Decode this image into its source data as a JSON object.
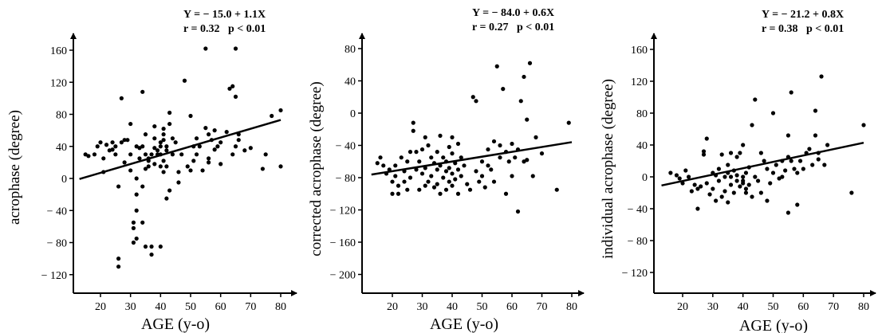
{
  "chart_data": [
    {
      "type": "scatter",
      "xlabel": "AGE (y-o)",
      "ylabel": "acrophase (degree)",
      "equation": "Y = − 15.0 + 1.1X",
      "stats": "r = 0.32   p < 0.01",
      "xlim": [
        12,
        82
      ],
      "ylim": [
        -130,
        170
      ],
      "xticks": [
        "20",
        "30",
        "40",
        "50",
        "60",
        "70",
        "80"
      ],
      "yticks": [
        "160",
        "120",
        "80",
        "40",
        "0",
        "− 40",
        "− 80",
        "− 120"
      ],
      "yticks_values": [
        160,
        120,
        80,
        40,
        0,
        -40,
        -80,
        -120
      ],
      "regression": {
        "intercept": -15.0,
        "slope": 1.1,
        "x_range": [
          13,
          80
        ]
      },
      "points": [
        [
          15,
          30
        ],
        [
          16,
          28
        ],
        [
          18,
          30
        ],
        [
          19,
          40
        ],
        [
          20,
          45
        ],
        [
          21,
          8
        ],
        [
          21,
          25
        ],
        [
          22,
          42
        ],
        [
          23,
          35
        ],
        [
          24,
          36
        ],
        [
          24,
          45
        ],
        [
          25,
          40
        ],
        [
          25,
          30
        ],
        [
          26,
          -10
        ],
        [
          26,
          -100
        ],
        [
          26,
          -110
        ],
        [
          27,
          45
        ],
        [
          27,
          100
        ],
        [
          28,
          48
        ],
        [
          28,
          20
        ],
        [
          29,
          48
        ],
        [
          30,
          10
        ],
        [
          30,
          30
        ],
        [
          30,
          68
        ],
        [
          31,
          -55
        ],
        [
          31,
          -62
        ],
        [
          31,
          -80
        ],
        [
          32,
          0
        ],
        [
          32,
          -20
        ],
        [
          32,
          -40
        ],
        [
          32,
          -75
        ],
        [
          32,
          40
        ],
        [
          33,
          38
        ],
        [
          33,
          25
        ],
        [
          34,
          40
        ],
        [
          34,
          108
        ],
        [
          34,
          -10
        ],
        [
          34,
          -55
        ],
        [
          35,
          30
        ],
        [
          35,
          55
        ],
        [
          35,
          12
        ],
        [
          35,
          -85
        ],
        [
          36,
          25
        ],
        [
          36,
          22
        ],
        [
          36,
          15
        ],
        [
          37,
          -95
        ],
        [
          37,
          -85
        ],
        [
          37,
          30
        ],
        [
          38,
          38
        ],
        [
          38,
          65
        ],
        [
          38,
          50
        ],
        [
          38,
          18
        ],
        [
          39,
          35
        ],
        [
          39,
          30
        ],
        [
          40,
          40
        ],
        [
          40,
          45
        ],
        [
          40,
          30
        ],
        [
          40,
          15
        ],
        [
          40,
          -85
        ],
        [
          41,
          55
        ],
        [
          41,
          62
        ],
        [
          41,
          48
        ],
        [
          41,
          22
        ],
        [
          41,
          8
        ],
        [
          42,
          -25
        ],
        [
          42,
          40
        ],
        [
          42,
          35
        ],
        [
          42,
          15
        ],
        [
          43,
          82
        ],
        [
          43,
          68
        ],
        [
          43,
          -15
        ],
        [
          44,
          50
        ],
        [
          44,
          30
        ],
        [
          45,
          45
        ],
        [
          46,
          8
        ],
        [
          46,
          -5
        ],
        [
          47,
          30
        ],
        [
          48,
          122
        ],
        [
          49,
          15
        ],
        [
          50,
          10
        ],
        [
          50,
          78
        ],
        [
          51,
          40
        ],
        [
          51,
          22
        ],
        [
          52,
          50
        ],
        [
          52,
          30
        ],
        [
          53,
          40
        ],
        [
          54,
          10
        ],
        [
          55,
          63
        ],
        [
          55,
          162
        ],
        [
          56,
          25
        ],
        [
          56,
          20
        ],
        [
          56,
          55
        ],
        [
          57,
          48
        ],
        [
          58,
          60
        ],
        [
          58,
          36
        ],
        [
          59,
          40
        ],
        [
          60,
          45
        ],
        [
          60,
          18
        ],
        [
          62,
          58
        ],
        [
          63,
          112
        ],
        [
          64,
          30
        ],
        [
          64,
          115
        ],
        [
          65,
          40
        ],
        [
          65,
          102
        ],
        [
          65,
          162
        ],
        [
          66,
          48
        ],
        [
          66,
          55
        ],
        [
          68,
          35
        ],
        [
          70,
          38
        ],
        [
          74,
          12
        ],
        [
          75,
          30
        ],
        [
          77,
          78
        ],
        [
          80,
          15
        ],
        [
          80,
          85
        ]
      ]
    },
    {
      "type": "scatter",
      "xlabel": "AGE (y-o)",
      "ylabel": "corrected acrophase (degree)",
      "equation": "Y = − 84.0 + 0.6X",
      "stats": "r = 0.27   p < 0.01",
      "xlim": [
        12,
        82
      ],
      "ylim": [
        -215,
        95
      ],
      "xticks": [
        "20",
        "30",
        "40",
        "50",
        "60",
        "70",
        "80"
      ],
      "yticks": [
        "80",
        "40",
        "0",
        "− 40",
        "− 80",
        "− 120",
        "− 160",
        "− 200"
      ],
      "yticks_values": [
        80,
        40,
        0,
        -40,
        -80,
        -120,
        -160,
        -200
      ],
      "regression": {
        "intercept": -84.0,
        "slope": 0.6,
        "x_range": [
          13,
          80
        ]
      },
      "points": [
        [
          15,
          -62
        ],
        [
          16,
          -55
        ],
        [
          17,
          -65
        ],
        [
          18,
          -75
        ],
        [
          19,
          -70
        ],
        [
          20,
          -100
        ],
        [
          20,
          -85
        ],
        [
          21,
          -78
        ],
        [
          21,
          -65
        ],
        [
          22,
          -90
        ],
        [
          22,
          -100
        ],
        [
          23,
          -55
        ],
        [
          24,
          -72
        ],
        [
          24,
          -85
        ],
        [
          25,
          -60
        ],
        [
          25,
          -95
        ],
        [
          26,
          -48
        ],
        [
          26,
          -80
        ],
        [
          27,
          -12
        ],
        [
          27,
          -22
        ],
        [
          28,
          -48
        ],
        [
          28,
          -70
        ],
        [
          29,
          -60
        ],
        [
          29,
          -95
        ],
        [
          30,
          -45
        ],
        [
          30,
          -75
        ],
        [
          31,
          -30
        ],
        [
          31,
          -68
        ],
        [
          31,
          -90
        ],
        [
          32,
          -40
        ],
        [
          32,
          -85
        ],
        [
          33,
          -55
        ],
        [
          33,
          -78
        ],
        [
          34,
          -62
        ],
        [
          34,
          -92
        ],
        [
          35,
          -48
        ],
        [
          35,
          -70
        ],
        [
          35,
          -88
        ],
        [
          36,
          -28
        ],
        [
          36,
          -65
        ],
        [
          36,
          -100
        ],
        [
          37,
          -55
        ],
        [
          37,
          -80
        ],
        [
          38,
          -60
        ],
        [
          38,
          -72
        ],
        [
          38,
          -95
        ],
        [
          39,
          -42
        ],
        [
          39,
          -68
        ],
        [
          39,
          -85
        ],
        [
          40,
          -30
        ],
        [
          40,
          -50
        ],
        [
          40,
          -75
        ],
        [
          40,
          -90
        ],
        [
          41,
          -62
        ],
        [
          41,
          -82
        ],
        [
          42,
          -38
        ],
        [
          42,
          -70
        ],
        [
          42,
          -100
        ],
        [
          43,
          -55
        ],
        [
          43,
          -78
        ],
        [
          44,
          -65
        ],
        [
          45,
          -88
        ],
        [
          46,
          -95
        ],
        [
          47,
          20
        ],
        [
          48,
          -72
        ],
        [
          48,
          15
        ],
        [
          49,
          -85
        ],
        [
          50,
          -60
        ],
        [
          50,
          -78
        ],
        [
          51,
          -92
        ],
        [
          52,
          -45
        ],
        [
          52,
          -65
        ],
        [
          53,
          -70
        ],
        [
          54,
          -35
        ],
        [
          54,
          -85
        ],
        [
          55,
          58
        ],
        [
          56,
          -40
        ],
        [
          56,
          -55
        ],
        [
          57,
          30
        ],
        [
          58,
          -100
        ],
        [
          58,
          -48
        ],
        [
          59,
          -60
        ],
        [
          60,
          -38
        ],
        [
          60,
          -78
        ],
        [
          61,
          -55
        ],
        [
          62,
          -122
        ],
        [
          62,
          -45
        ],
        [
          63,
          15
        ],
        [
          64,
          -60
        ],
        [
          64,
          45
        ],
        [
          65,
          -58
        ],
        [
          65,
          -8
        ],
        [
          66,
          62
        ],
        [
          67,
          -78
        ],
        [
          68,
          -30
        ],
        [
          70,
          -50
        ],
        [
          75,
          -95
        ],
        [
          79,
          -12
        ]
      ]
    },
    {
      "type": "scatter",
      "xlabel": "AGE (y-o)",
      "ylabel": "individual acrophase (degree)",
      "equation": "Y = − 21.2 + 0.8X",
      "stats": "r = 0.38   p < 0.01",
      "xlim": [
        12,
        82
      ],
      "ylim": [
        -130,
        170
      ],
      "xticks": [
        "20",
        "30",
        "40",
        "50",
        "60",
        "70",
        "80"
      ],
      "yticks": [
        "160",
        "120",
        "80",
        "40",
        "0",
        "− 40",
        "− 80",
        "− 120"
      ],
      "yticks_values": [
        160,
        120,
        80,
        40,
        0,
        -40,
        -80,
        -120
      ],
      "regression": {
        "intercept": -21.2,
        "slope": 0.8,
        "x_range": [
          13,
          80
        ]
      },
      "points": [
        [
          16,
          5
        ],
        [
          18,
          2
        ],
        [
          19,
          -2
        ],
        [
          20,
          -8
        ],
        [
          21,
          8
        ],
        [
          22,
          0
        ],
        [
          23,
          -18
        ],
        [
          24,
          -10
        ],
        [
          25,
          -15
        ],
        [
          25,
          -40
        ],
        [
          26,
          -12
        ],
        [
          27,
          28
        ],
        [
          27,
          32
        ],
        [
          28,
          48
        ],
        [
          28,
          -8
        ],
        [
          29,
          -22
        ],
        [
          30,
          5
        ],
        [
          30,
          -15
        ],
        [
          31,
          2
        ],
        [
          31,
          -30
        ],
        [
          32,
          10
        ],
        [
          32,
          -5
        ],
        [
          33,
          -25
        ],
        [
          33,
          28
        ],
        [
          34,
          0
        ],
        [
          34,
          -18
        ],
        [
          35,
          5
        ],
        [
          35,
          15
        ],
        [
          35,
          -32
        ],
        [
          36,
          30
        ],
        [
          36,
          0
        ],
        [
          36,
          -10
        ],
        [
          37,
          8
        ],
        [
          37,
          -20
        ],
        [
          38,
          -5
        ],
        [
          38,
          2
        ],
        [
          38,
          25
        ],
        [
          39,
          -12
        ],
        [
          39,
          30
        ],
        [
          40,
          0
        ],
        [
          40,
          -5
        ],
        [
          40,
          -8
        ],
        [
          40,
          40
        ],
        [
          41,
          5
        ],
        [
          41,
          -15
        ],
        [
          41,
          -20
        ],
        [
          42,
          12
        ],
        [
          42,
          -10
        ],
        [
          43,
          65
        ],
        [
          43,
          -25
        ],
        [
          44,
          97
        ],
        [
          44,
          0
        ],
        [
          45,
          -5
        ],
        [
          46,
          30
        ],
        [
          46,
          -20
        ],
        [
          47,
          20
        ],
        [
          48,
          10
        ],
        [
          48,
          -30
        ],
        [
          49,
          -8
        ],
        [
          50,
          80
        ],
        [
          50,
          5
        ],
        [
          51,
          15
        ],
        [
          52,
          -2
        ],
        [
          53,
          20
        ],
        [
          53,
          0
        ],
        [
          54,
          8
        ],
        [
          55,
          52
        ],
        [
          55,
          25
        ],
        [
          55,
          -45
        ],
        [
          56,
          20
        ],
        [
          56,
          106
        ],
        [
          57,
          10
        ],
        [
          58,
          -35
        ],
        [
          58,
          5
        ],
        [
          59,
          20
        ],
        [
          60,
          10
        ],
        [
          61,
          30
        ],
        [
          62,
          35
        ],
        [
          63,
          15
        ],
        [
          64,
          83
        ],
        [
          64,
          52
        ],
        [
          65,
          22
        ],
        [
          65,
          30
        ],
        [
          66,
          126
        ],
        [
          67,
          15
        ],
        [
          68,
          40
        ],
        [
          76,
          -20
        ],
        [
          80,
          65
        ]
      ]
    }
  ]
}
